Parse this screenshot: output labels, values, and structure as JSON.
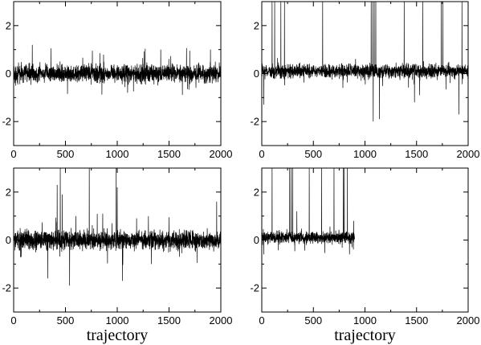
{
  "chart_data": [
    {
      "type": "line",
      "panel": "top-left",
      "xlim": [
        0,
        2000
      ],
      "ylim": [
        -3,
        3
      ],
      "xticks": [
        0,
        500,
        1000,
        1500,
        2000
      ],
      "yticks": [
        -2,
        0,
        2
      ],
      "xlabel": "",
      "ylabel": "",
      "series": [
        {
          "n": 2000,
          "baseline": 0.0,
          "noise_amplitude": 0.32,
          "spikes": [
            {
              "x": 180,
              "y": 1.2
            },
            {
              "x": 360,
              "y": 1.05
            },
            {
              "x": 520,
              "y": -0.85
            },
            {
              "x": 760,
              "y": 0.95
            },
            {
              "x": 1100,
              "y": -0.8
            },
            {
              "x": 1420,
              "y": 1.0
            },
            {
              "x": 1700,
              "y": 0.95
            },
            {
              "x": 1900,
              "y": 1.0
            }
          ]
        }
      ]
    },
    {
      "type": "line",
      "panel": "top-right",
      "xlim": [
        0,
        2000
      ],
      "ylim": [
        -3,
        3
      ],
      "xticks": [
        0,
        500,
        1000,
        1500,
        2000
      ],
      "yticks": [
        -2,
        0,
        2
      ],
      "xlabel": "",
      "ylabel": "",
      "series": [
        {
          "n": 2000,
          "baseline": 0.1,
          "noise_amplitude": 0.25,
          "spikes": [
            {
              "x": 100,
              "y": 3.0
            },
            {
              "x": 125,
              "y": 3.0
            },
            {
              "x": 185,
              "y": 3.0
            },
            {
              "x": 220,
              "y": 3.0
            },
            {
              "x": 590,
              "y": 3.0
            },
            {
              "x": 1060,
              "y": 3.0
            },
            {
              "x": 1075,
              "y": 3.0
            },
            {
              "x": 1090,
              "y": 3.0
            },
            {
              "x": 1105,
              "y": 3.0
            },
            {
              "x": 1380,
              "y": 3.0
            },
            {
              "x": 1560,
              "y": 3.0
            },
            {
              "x": 1740,
              "y": 3.0
            },
            {
              "x": 1755,
              "y": 3.0
            },
            {
              "x": 1940,
              "y": 3.0
            },
            {
              "x": 20,
              "y": -1.3
            },
            {
              "x": 1080,
              "y": -2.0
            },
            {
              "x": 1140,
              "y": -1.9
            },
            {
              "x": 1480,
              "y": -1.2
            },
            {
              "x": 1910,
              "y": -1.7
            },
            {
              "x": 1530,
              "y": -0.9
            }
          ]
        }
      ]
    },
    {
      "type": "line",
      "panel": "bottom-left",
      "xlim": [
        0,
        2000
      ],
      "ylim": [
        -3,
        3
      ],
      "xticks": [
        0,
        500,
        1000,
        1500,
        2000
      ],
      "yticks": [
        -2,
        0,
        2
      ],
      "xlabel": "trajectory",
      "ylabel": "",
      "series": [
        {
          "n": 2000,
          "baseline": 0.0,
          "noise_amplitude": 0.35,
          "spikes": [
            {
              "x": 420,
              "y": 2.3
            },
            {
              "x": 450,
              "y": 3.0
            },
            {
              "x": 470,
              "y": 1.9
            },
            {
              "x": 730,
              "y": 3.0
            },
            {
              "x": 990,
              "y": 3.0
            },
            {
              "x": 1000,
              "y": 2.2
            },
            {
              "x": 1960,
              "y": 1.6
            },
            {
              "x": 330,
              "y": -1.6
            },
            {
              "x": 540,
              "y": -1.9
            },
            {
              "x": 1050,
              "y": -1.7
            },
            {
              "x": 1330,
              "y": -1.0
            },
            {
              "x": 1770,
              "y": -0.95
            },
            {
              "x": 600,
              "y": 1.0
            },
            {
              "x": 860,
              "y": 1.1
            },
            {
              "x": 1500,
              "y": 0.95
            }
          ]
        }
      ]
    },
    {
      "type": "line",
      "panel": "bottom-right",
      "xlim": [
        0,
        2000
      ],
      "ylim": [
        -3,
        3
      ],
      "xticks": [
        0,
        500,
        1000,
        1500,
        2000
      ],
      "yticks": [
        -2,
        0,
        2
      ],
      "xlabel": "trajectory",
      "ylabel": "",
      "series": [
        {
          "n": 900,
          "baseline": 0.1,
          "noise_amplitude": 0.22,
          "spikes": [
            {
              "x": 100,
              "y": 3.0
            },
            {
              "x": 270,
              "y": 3.0
            },
            {
              "x": 285,
              "y": 3.0
            },
            {
              "x": 300,
              "y": 3.0
            },
            {
              "x": 460,
              "y": 3.0
            },
            {
              "x": 580,
              "y": 3.0
            },
            {
              "x": 700,
              "y": 3.0
            },
            {
              "x": 790,
              "y": 3.0
            },
            {
              "x": 800,
              "y": 3.0
            },
            {
              "x": 830,
              "y": 3.0
            },
            {
              "x": 340,
              "y": 1.2
            },
            {
              "x": 20,
              "y": -0.6
            },
            {
              "x": 850,
              "y": -0.6
            },
            {
              "x": 890,
              "y": 0.8
            }
          ]
        }
      ]
    }
  ]
}
